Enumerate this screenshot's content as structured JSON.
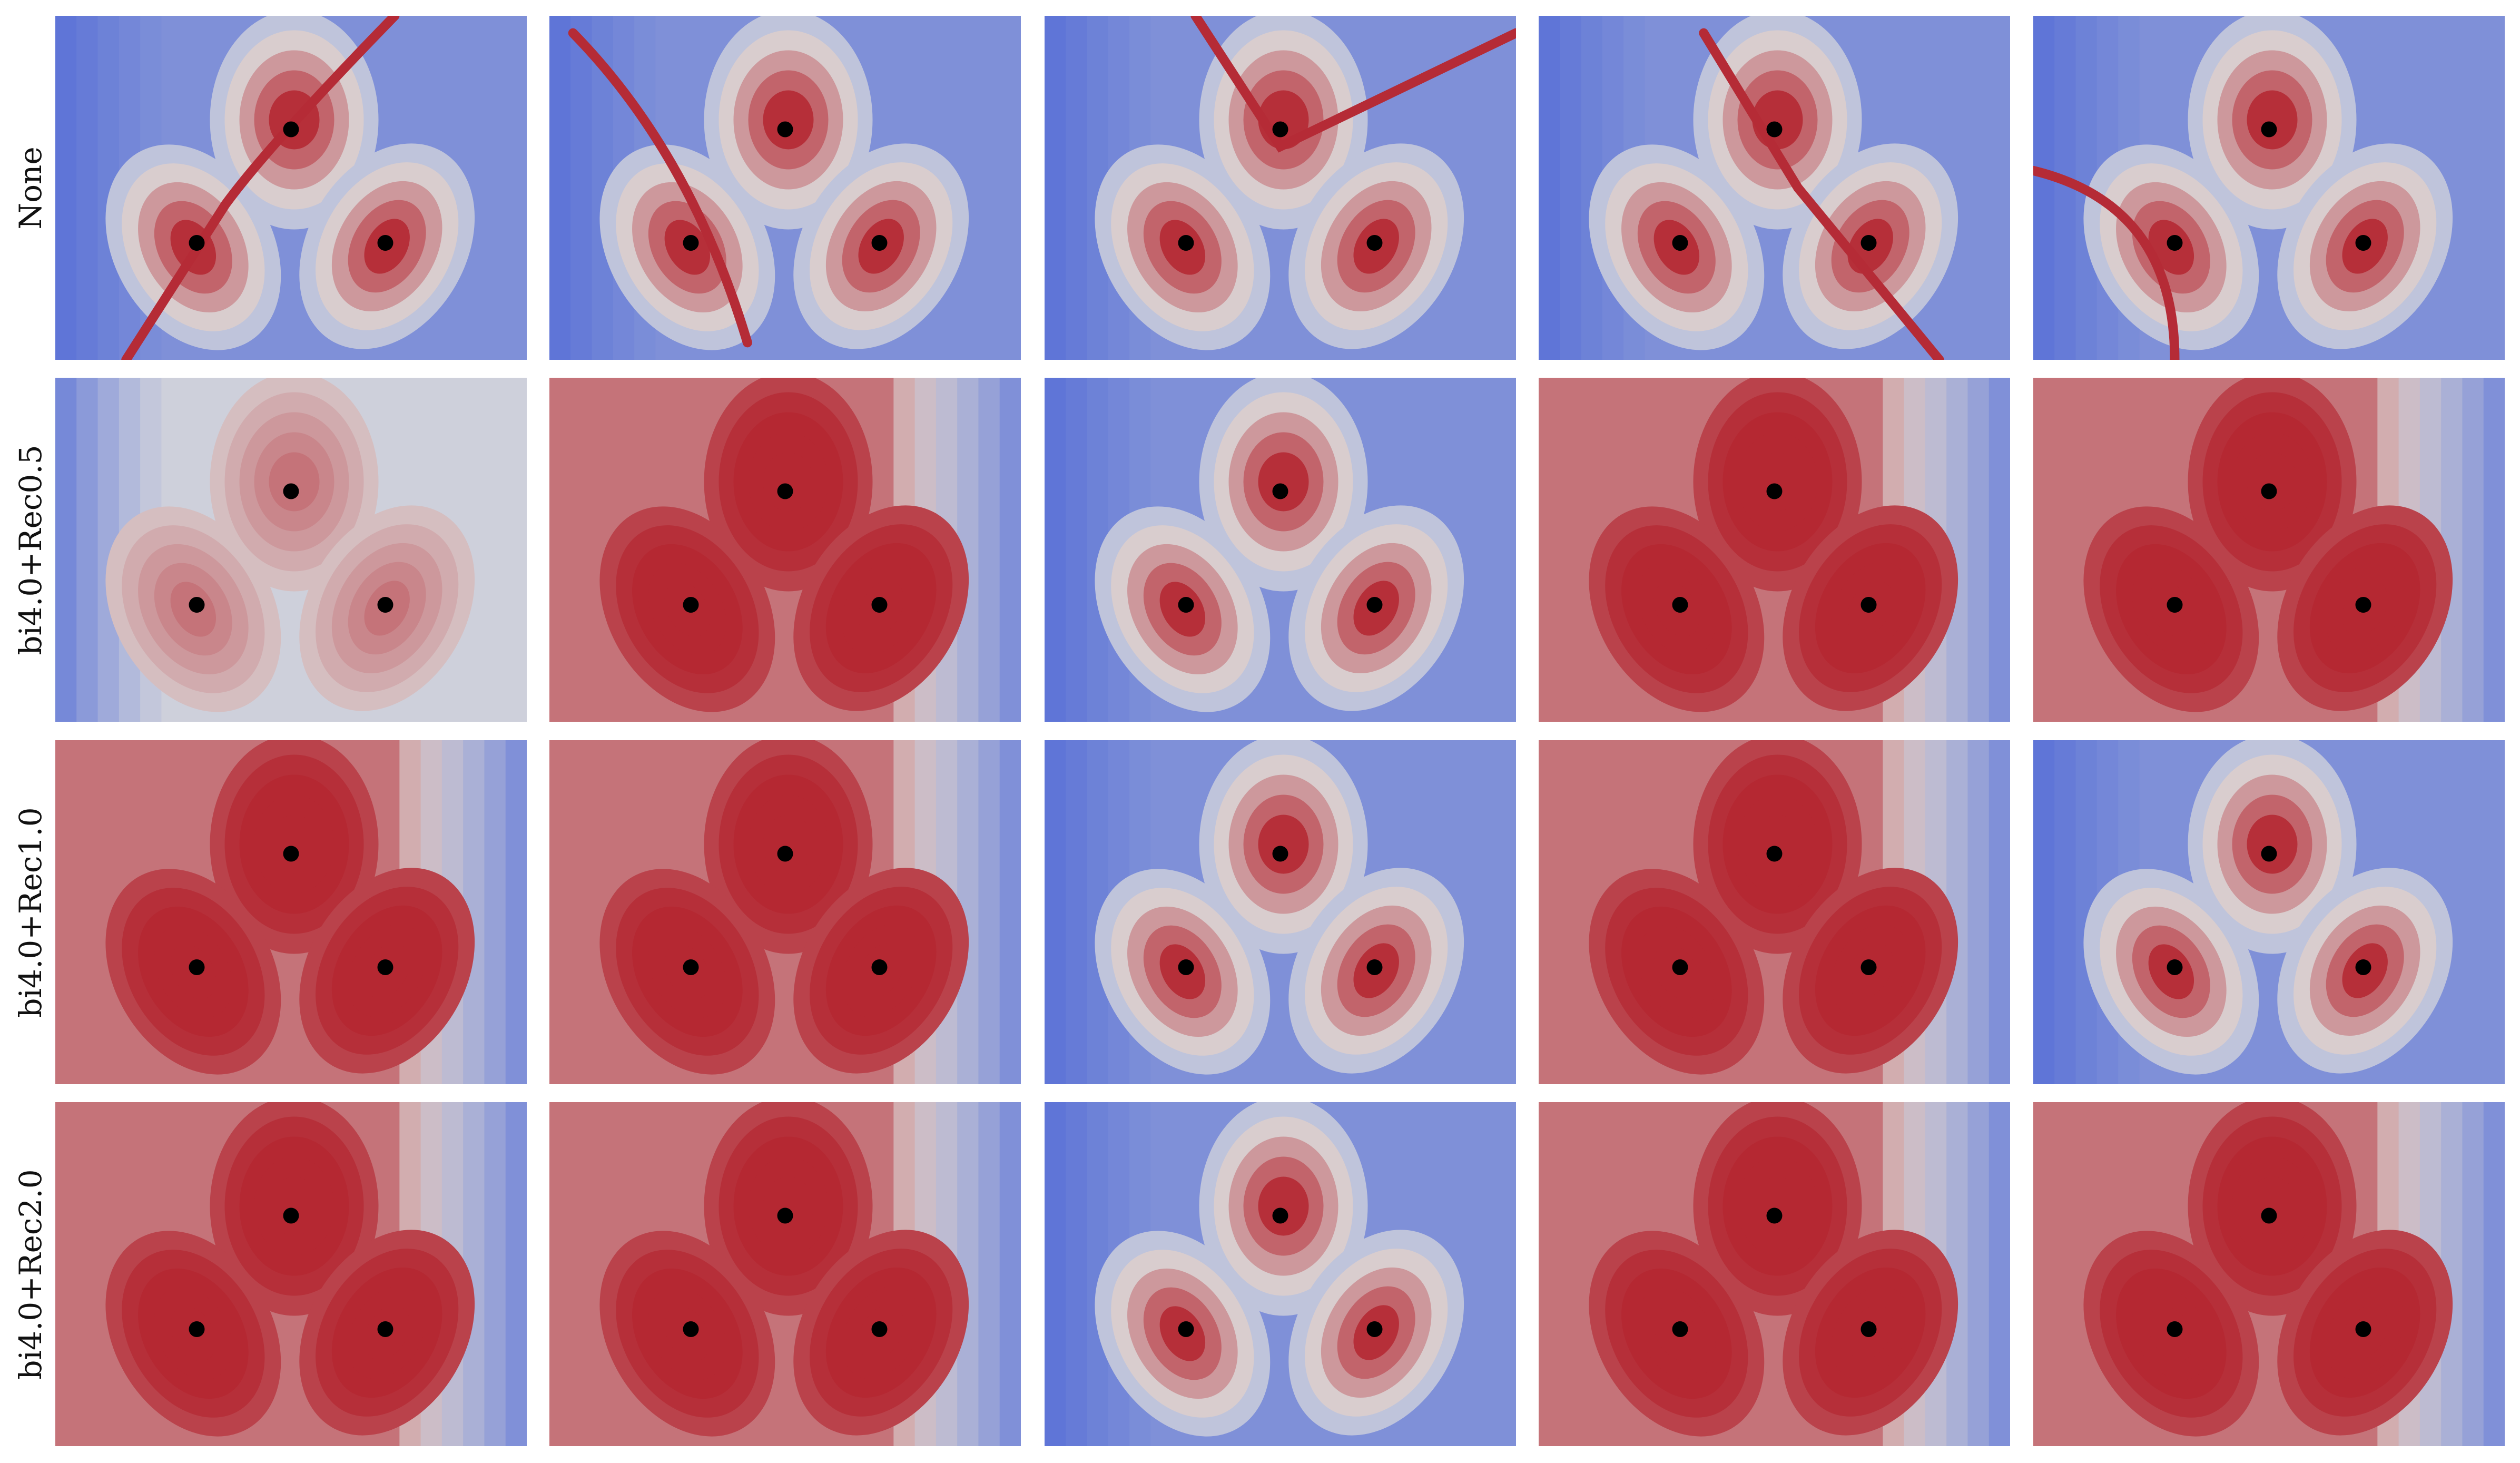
{
  "chart_data": {
    "type": "heatmap",
    "colormap": "coolwarm",
    "colors": {
      "low": "#4b66d6",
      "mid": "#dcdcdc",
      "high": "#b3202b"
    },
    "rows": [
      "None",
      "bi4.0+Rec0.5",
      "bi4.0+Rec1.0",
      "bi4.0+Rec2.0"
    ],
    "columns": 5,
    "points_per_panel": 3,
    "grid": false,
    "axes_visible": false
  }
}
